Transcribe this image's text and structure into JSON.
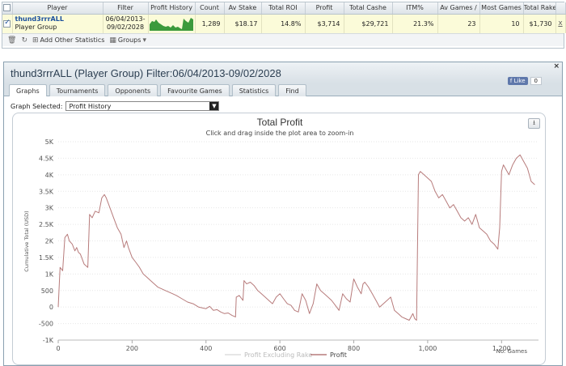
{
  "stats_table": {
    "headers": [
      "Player",
      "Filter",
      "Profit History",
      "Count",
      "Av Stake",
      "Total ROI",
      "Profit",
      "Total Cashe",
      "ITM%",
      "Av Games /",
      "Most Games",
      "Total Rake"
    ],
    "row": {
      "player_name": "thund3rrrALL",
      "player_sub": "Player Group",
      "filter_line1": "06/04/2013-",
      "filter_line2": "09/02/2028",
      "count": "1,289",
      "av_stake": "$18.17",
      "total_roi": "14.8%",
      "profit": "$3,714",
      "total_cashe": "$29,721",
      "itm": "21.3%",
      "av_games": "23",
      "most_games": "10",
      "total_rake": "$1,730",
      "remove": "x"
    },
    "toolbar": {
      "add_stats": "Add Other Statistics",
      "groups": "Groups"
    }
  },
  "panel": {
    "title": "thund3rrrALL (Player Group) Filter:06/04/2013-09/02/2028",
    "close": "×",
    "fb_like": "Like",
    "fb_count": "0",
    "tabs": [
      "Graphs",
      "Tournaments",
      "Opponents",
      "Favourite Games",
      "Statistics",
      "Find"
    ],
    "graph_selected_label": "Graph Selected:",
    "graph_selected_value": "Profit History"
  },
  "chart_data": {
    "type": "line",
    "title": "Total Profit",
    "subtitle": "Click and drag inside the plot area to zoom-in",
    "xlabel": "No. Games",
    "ylabel": "Cumulative Total (USD)",
    "xlim": [
      0,
      1300
    ],
    "ylim": [
      -1000,
      5000
    ],
    "x_ticks": [
      "0",
      "200",
      "400",
      "600",
      "800",
      "1,000",
      "1,200"
    ],
    "y_ticks": [
      "-1K",
      "-500",
      "0",
      "500",
      "1K",
      "1.5K",
      "2K",
      "2.5K",
      "3K",
      "3.5K",
      "4K",
      "4.5K",
      "5K"
    ],
    "legend": [
      "Profit Excluding Rake",
      "Profit"
    ],
    "legend_position": "bottom-center",
    "grid": true,
    "series": [
      {
        "name": "Profit",
        "color": "#b77b7b",
        "x": [
          0,
          5,
          12,
          18,
          25,
          30,
          38,
          45,
          50,
          55,
          60,
          70,
          80,
          85,
          92,
          100,
          110,
          118,
          125,
          130,
          140,
          150,
          160,
          170,
          178,
          185,
          190,
          200,
          210,
          220,
          230,
          240,
          250,
          260,
          270,
          280,
          290,
          300,
          310,
          320,
          335,
          350,
          365,
          380,
          400,
          410,
          420,
          430,
          440,
          450,
          460,
          470,
          480,
          482,
          490,
          500,
          503,
          510,
          520,
          530,
          540,
          550,
          560,
          570,
          580,
          590,
          600,
          610,
          620,
          630,
          640,
          650,
          660,
          670,
          680,
          690,
          700,
          710,
          720,
          730,
          740,
          750,
          760,
          770,
          780,
          790,
          800,
          810,
          820,
          825,
          830,
          840,
          850,
          860,
          870,
          880,
          890,
          900,
          910,
          920,
          930,
          940,
          950,
          960,
          965,
          970,
          975,
          980,
          990,
          1000,
          1010,
          1020,
          1030,
          1040,
          1050,
          1060,
          1070,
          1080,
          1090,
          1100,
          1110,
          1120,
          1130,
          1140,
          1150,
          1160,
          1170,
          1180,
          1190,
          1195,
          1200,
          1205,
          1210,
          1220,
          1230,
          1240,
          1250,
          1260,
          1270,
          1280,
          1290
        ],
        "y": [
          0,
          1200,
          1100,
          2100,
          2200,
          2000,
          1900,
          1700,
          1800,
          1650,
          1600,
          1300,
          1200,
          2800,
          2700,
          2900,
          2850,
          3300,
          3400,
          3300,
          3000,
          2700,
          2400,
          2200,
          1800,
          2000,
          1800,
          1500,
          1350,
          1200,
          1000,
          900,
          800,
          700,
          600,
          550,
          500,
          450,
          400,
          350,
          250,
          150,
          100,
          0,
          -50,
          20,
          -100,
          -80,
          -150,
          -200,
          -180,
          -250,
          -300,
          300,
          350,
          200,
          800,
          700,
          750,
          650,
          500,
          400,
          300,
          200,
          100,
          300,
          400,
          250,
          100,
          50,
          -100,
          -150,
          400,
          200,
          -200,
          100,
          700,
          500,
          400,
          300,
          200,
          50,
          -100,
          400,
          250,
          150,
          850,
          600,
          400,
          700,
          750,
          600,
          400,
          200,
          0,
          100,
          200,
          300,
          -100,
          -200,
          -300,
          -350,
          -400,
          -200,
          -350,
          -400,
          4000,
          4100,
          4000,
          3900,
          3800,
          3500,
          3300,
          3400,
          3200,
          3000,
          3100,
          2900,
          2700,
          2600,
          2700,
          2500,
          2800,
          2400,
          2300,
          2200,
          2000,
          1900,
          1750,
          2400,
          4100,
          4300,
          4200,
          4000,
          4300,
          4500,
          4600,
          4400,
          4200,
          3800,
          3700
        ]
      }
    ]
  }
}
